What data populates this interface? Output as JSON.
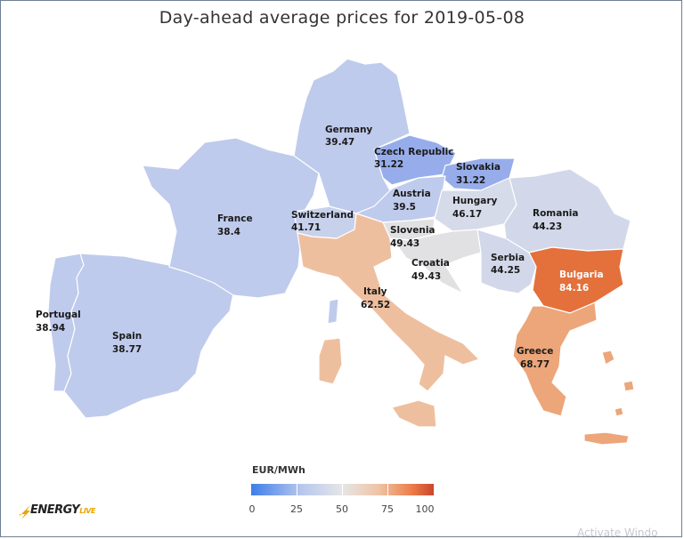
{
  "title": "Day-ahead average prices for 2019-05-08",
  "unit": "EUR/MWh",
  "scale": {
    "min": 0,
    "max": 100,
    "ticks": [
      "0",
      "25",
      "50",
      "75",
      "100"
    ],
    "colors": [
      "#3f7ee8",
      "#b8c8ee",
      "#e6e6e6",
      "#efc3a4",
      "#ec7d4a",
      "#c9462e"
    ]
  },
  "regions": {
    "germany": {
      "name": "Germany",
      "value": "39.47",
      "color": "#bfcbec"
    },
    "czech": {
      "name": "Czech Republic",
      "value": "31.22",
      "color": "#97adeb"
    },
    "slovakia": {
      "name": "Slovakia",
      "value": "31.22",
      "color": "#97adeb"
    },
    "france": {
      "name": "France",
      "value": "38.4",
      "color": "#bfcbec"
    },
    "switzerland": {
      "name": "Switzerland",
      "value": "41.71",
      "color": "#c7d1ec"
    },
    "austria": {
      "name": "Austria",
      "value": "39.5",
      "color": "#bfcbec"
    },
    "hungary": {
      "name": "Hungary",
      "value": "46.17",
      "color": "#d6dbe9"
    },
    "romania": {
      "name": "Romania",
      "value": "44.23",
      "color": "#d2d8ea"
    },
    "slovenia": {
      "name": "Slovenia",
      "value": "49.43",
      "color": "#e1e1e3"
    },
    "croatia": {
      "name": "Croatia",
      "value": "49.43",
      "color": "#e1e1e3"
    },
    "serbia": {
      "name": "Serbia",
      "value": "44.25",
      "color": "#d2d8ea"
    },
    "bulgaria": {
      "name": "Bulgaria",
      "value": "84.16",
      "color": "#e4703b"
    },
    "italy": {
      "name": "Italy",
      "value": "62.52",
      "color": "#eebf9f"
    },
    "greece": {
      "name": "Greece",
      "value": "68.77",
      "color": "#eca67a"
    },
    "portugal": {
      "name": "Portugal",
      "value": "38.94",
      "color": "#bfcbec"
    },
    "spain": {
      "name": "Spain",
      "value": "38.77",
      "color": "#bfcbec"
    }
  },
  "branding": {
    "logo_text": "ENERGY",
    "logo_sub": "LIVE"
  },
  "watermark": "Activate Windo"
}
